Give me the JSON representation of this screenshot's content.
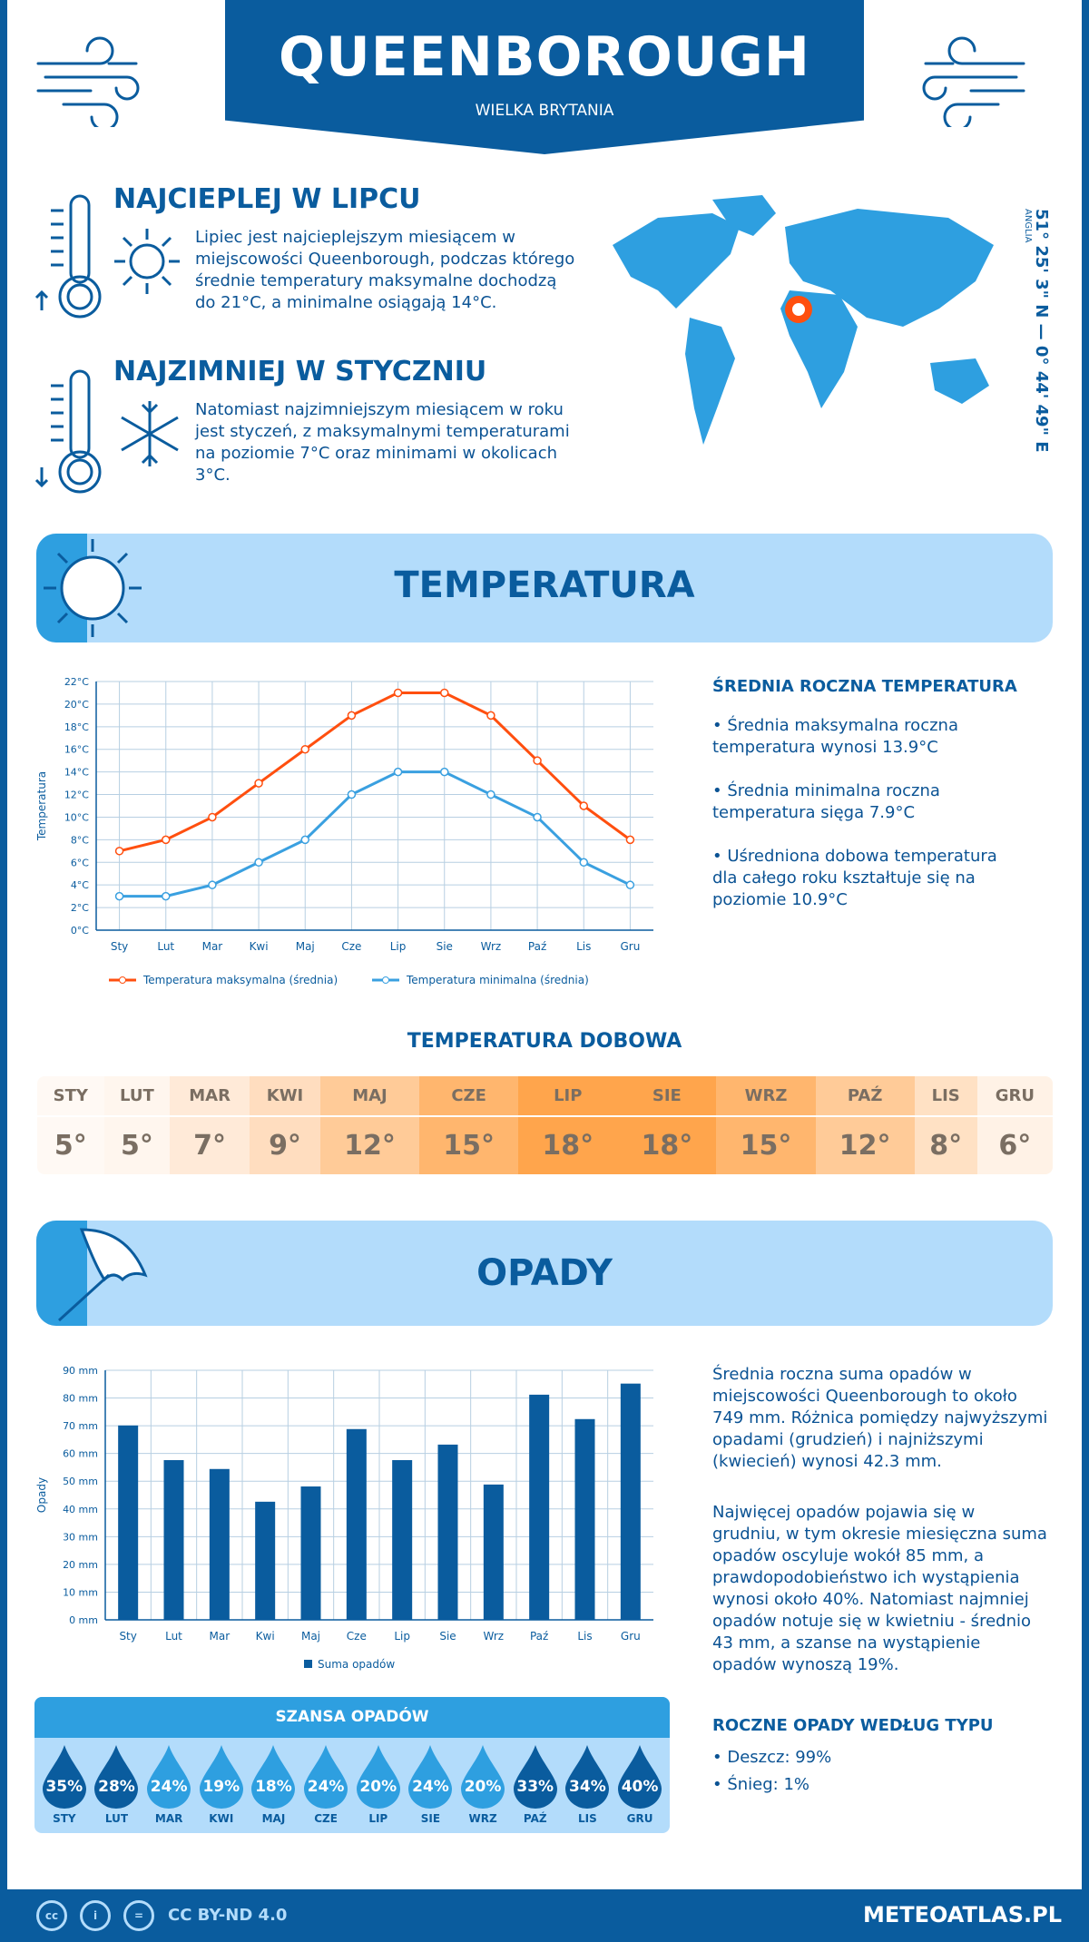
{
  "header": {
    "city": "QUEENBOROUGH",
    "country": "WIELKA BRYTANIA"
  },
  "warmest": {
    "title": "NAJCIEPLEJ W LIPCU",
    "text": "Lipiec jest najcieplejszym miesiącem w miejscowości Queenborough, podczas którego średnie temperatury maksymalne dochodzą do 21°C, a minimalne osiągają 14°C."
  },
  "coldest": {
    "title": "NAJZIMNIEJ W STYCZNIU",
    "text": "Natomiast najzimniejszym miesiącem w roku jest styczeń, z maksymalnymi temperaturami na poziomie 7°C oraz minimami w okolicach 3°C."
  },
  "location": {
    "coords": "51° 25' 3\" N — 0° 44' 49\" E",
    "region": "ANGLIA"
  },
  "temp_section": {
    "title": "TEMPERATURA",
    "annual_title": "ŚREDNIA ROCZNA TEMPERATURA",
    "bullets": [
      "• Średnia maksymalna roczna temperatura wynosi 13.9°C",
      "• Średnia minimalna roczna temperatura sięga 7.9°C",
      "• Uśredniona dobowa temperatura dla całego roku kształtuje się na poziomie 10.9°C"
    ]
  },
  "daily": {
    "title": "TEMPERATURA DOBOWA",
    "months": [
      "STY",
      "LUT",
      "MAR",
      "KWI",
      "MAJ",
      "CZE",
      "LIP",
      "SIE",
      "WRZ",
      "PAŹ",
      "LIS",
      "GRU"
    ],
    "values": [
      "5°",
      "5°",
      "7°",
      "9°",
      "12°",
      "15°",
      "18°",
      "18°",
      "15°",
      "12°",
      "8°",
      "6°"
    ],
    "colors": [
      "#fff9f4",
      "#fff6ee",
      "#ffead8",
      "#ffddbf",
      "#ffcb98",
      "#ffb66e",
      "#ffa54c",
      "#ffa54c",
      "#ffb66e",
      "#ffcb98",
      "#ffe1c4",
      "#fff2e6"
    ]
  },
  "precip_section": {
    "title": "OPADY",
    "text1": "Średnia roczna suma opadów w miejscowości Queenborough to około 749 mm. Różnica pomiędzy najwyższymi opadami (grudzień) i najniższymi (kwiecień) wynosi 42.3 mm.",
    "text2": "Najwięcej opadów pojawia się w grudniu, w tym okresie miesięczna suma opadów oscyluje wokół 85 mm, a prawdopodobieństwo ich wystąpienia wynosi około 40%. Natomiast najmniej opadów notuje się w kwietniu - średnio 43 mm, a szanse na wystąpienie opadów wynoszą 19%.",
    "type_title": "ROCZNE OPADY WEDŁUG TYPU",
    "types": [
      "• Deszcz: 99%",
      "• Śnieg: 1%"
    ]
  },
  "chance": {
    "title": "SZANSA OPADÓW",
    "months": [
      "STY",
      "LUT",
      "MAR",
      "KWI",
      "MAJ",
      "CZE",
      "LIP",
      "SIE",
      "WRZ",
      "PAŹ",
      "LIS",
      "GRU"
    ],
    "values": [
      "35%",
      "28%",
      "24%",
      "19%",
      "18%",
      "24%",
      "20%",
      "24%",
      "20%",
      "33%",
      "34%",
      "40%"
    ],
    "dark": [
      true,
      true,
      false,
      false,
      false,
      false,
      false,
      false,
      false,
      true,
      true,
      true
    ],
    "color_dark": "#0a5c9e",
    "color_light": "#2e9fe0"
  },
  "footer": {
    "license": "CC BY-ND 4.0",
    "site": "METEOATLAS.PL"
  },
  "chart_data": [
    {
      "type": "line",
      "ylabel": "Temperatura",
      "categories": [
        "Sty",
        "Lut",
        "Mar",
        "Kwi",
        "Maj",
        "Cze",
        "Lip",
        "Sie",
        "Wrz",
        "Paź",
        "Lis",
        "Gru"
      ],
      "yticks": [
        "0°C",
        "2°C",
        "4°C",
        "6°C",
        "8°C",
        "10°C",
        "12°C",
        "14°C",
        "16°C",
        "18°C",
        "20°C",
        "22°C"
      ],
      "ylim": [
        0,
        22
      ],
      "grid": true,
      "legend": "bottom",
      "series": [
        {
          "name": "Temperatura maksymalna (średnia)",
          "color": "#ff4f0f",
          "values": [
            7,
            8,
            10,
            13,
            16,
            19,
            21,
            21,
            19,
            15,
            11,
            8
          ]
        },
        {
          "name": "Temperatura minimalna (średnia)",
          "color": "#3aa0e0",
          "values": [
            3,
            3,
            4,
            6,
            8,
            12,
            14,
            14,
            12,
            10,
            6,
            4
          ]
        }
      ]
    },
    {
      "type": "bar",
      "ylabel": "Opady",
      "categories": [
        "Sty",
        "Lut",
        "Mar",
        "Kwi",
        "Maj",
        "Cze",
        "Lip",
        "Sie",
        "Wrz",
        "Paź",
        "Lis",
        "Gru"
      ],
      "yticks": [
        "0 mm",
        "10 mm",
        "20 mm",
        "30 mm",
        "40 mm",
        "50 mm",
        "60 mm",
        "70 mm",
        "80 mm",
        "90 mm"
      ],
      "ylim": [
        0,
        90
      ],
      "grid": true,
      "legend": "bottom",
      "series": [
        {
          "name": "Suma opadów",
          "color": "#0a5c9e",
          "values": [
            70.1,
            57.6,
            54.4,
            42.6,
            48.1,
            68.8,
            57.6,
            63.2,
            48.8,
            81.2,
            72.4,
            85.2
          ]
        }
      ]
    }
  ]
}
